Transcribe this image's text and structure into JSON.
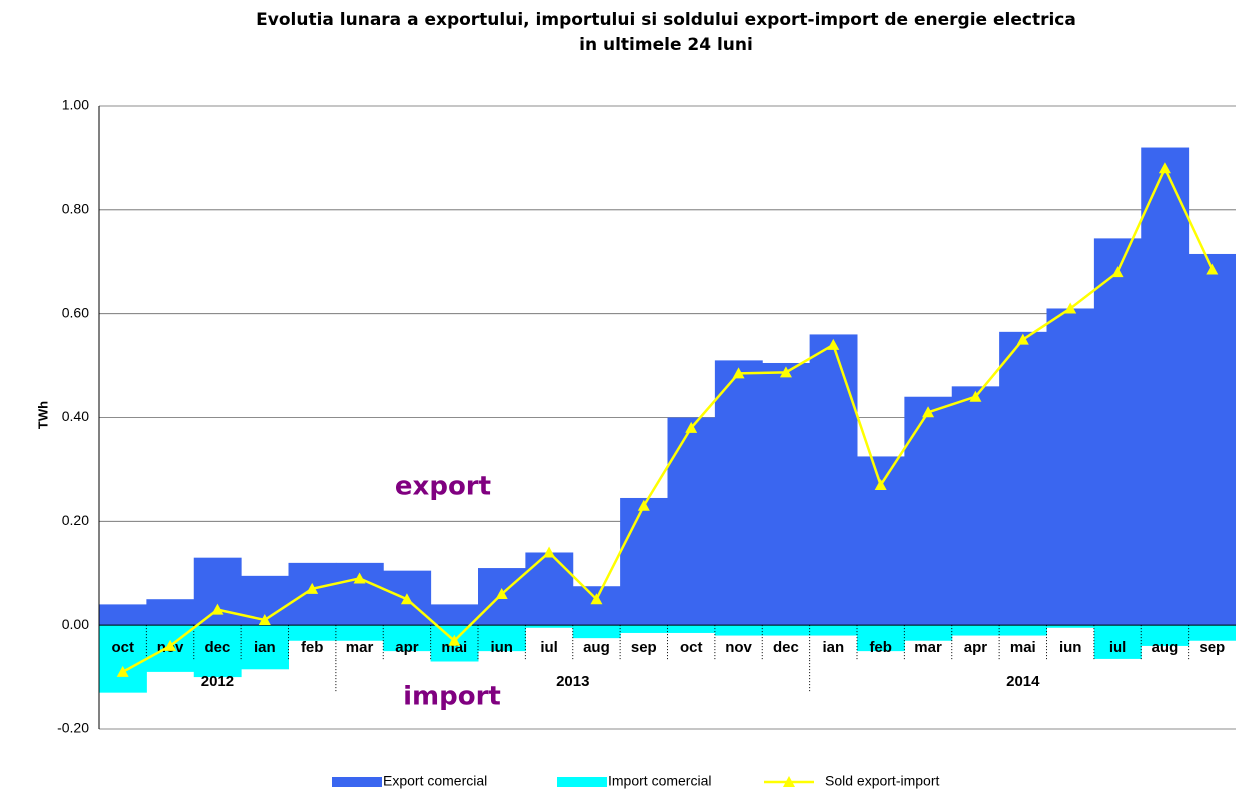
{
  "chart_data": {
    "type": "bar-line",
    "title": "Evolutia lunara a exportului, importului si soldului export-import de energie electrica",
    "subtitle": "in ultimele 24 luni",
    "y_label": "TWh",
    "categories": [
      "oct",
      "nov",
      "dec",
      "ian",
      "feb",
      "mar",
      "apr",
      "mai",
      "iun",
      "iul",
      "aug",
      "sep",
      "oct",
      "nov",
      "dec",
      "ian",
      "feb",
      "mar",
      "apr",
      "mai",
      "iun",
      "iul",
      "aug",
      "sep"
    ],
    "year_groups": [
      {
        "label": "2012",
        "span": 5
      },
      {
        "label": "2013",
        "span": 10
      },
      {
        "label": "2014",
        "span": 9
      }
    ],
    "series": [
      {
        "name": "Export comercial",
        "kind": "bar",
        "color": "#3a66f0",
        "values": [
          0.04,
          0.05,
          0.13,
          0.095,
          0.12,
          0.12,
          0.105,
          0.04,
          0.11,
          0.14,
          0.075,
          0.245,
          0.4,
          0.51,
          0.505,
          0.56,
          0.325,
          0.44,
          0.46,
          0.565,
          0.61,
          0.745,
          0.92,
          0.715
        ]
      },
      {
        "name": "Import comercial",
        "kind": "bar",
        "color": "#00ffff",
        "values": [
          -0.13,
          -0.09,
          -0.1,
          -0.085,
          -0.03,
          -0.03,
          -0.05,
          -0.07,
          -0.05,
          -0.005,
          -0.025,
          -0.015,
          -0.015,
          -0.02,
          -0.02,
          -0.02,
          -0.05,
          -0.03,
          -0.02,
          -0.02,
          -0.005,
          -0.065,
          -0.04,
          -0.03
        ]
      },
      {
        "name": "Sold export-import",
        "kind": "line",
        "color": "#ffff00",
        "values": [
          -0.09,
          -0.04,
          0.03,
          0.01,
          0.07,
          0.09,
          0.05,
          -0.03,
          0.06,
          0.14,
          0.05,
          0.23,
          0.38,
          0.485,
          0.487,
          0.54,
          0.27,
          0.41,
          0.44,
          0.55,
          0.61,
          0.68,
          0.88,
          0.685
        ]
      }
    ],
    "annotations": [
      {
        "text": "export",
        "color": "#800080"
      },
      {
        "text": "import",
        "color": "#800080"
      }
    ],
    "ylim": [
      -0.2,
      1.0
    ],
    "yticks": [
      {
        "value": -0.2,
        "label": "-0.20"
      },
      {
        "value": 0,
        "label": "0.00"
      },
      {
        "value": 0.2,
        "label": "0.20"
      },
      {
        "value": 0.4,
        "label": "0.40"
      },
      {
        "value": 0.6,
        "label": "0.60"
      },
      {
        "value": 0.8,
        "label": "0.80"
      },
      {
        "value": 1.0,
        "label": "1.00"
      }
    ],
    "grid": true
  }
}
